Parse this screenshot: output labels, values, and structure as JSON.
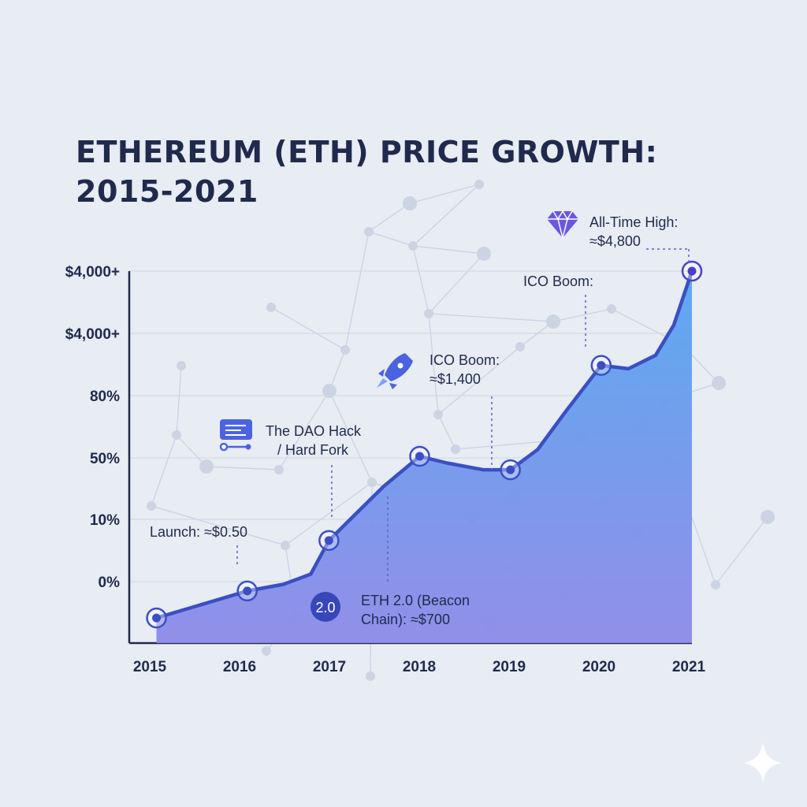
{
  "title_line1": "ETHEREUM (ETH) PRICE GROWTH:",
  "title_line2": "2015-2021",
  "colors": {
    "line": "#3b4fc4",
    "area_top": "#55a6f0",
    "area_bottom": "#8e8ae8",
    "text": "#1f2a4d",
    "grid": "#cfd6e4",
    "icon": "#4b63e0",
    "ath": "#4a3fc9"
  },
  "chart_data": {
    "type": "area",
    "x_ticks": [
      "2015",
      "2016",
      "2017",
      "2018",
      "2019",
      "2020",
      "2021"
    ],
    "y_ticks": [
      "$4,000+",
      "$4,000+",
      "80%",
      "50%",
      "10%",
      "0%"
    ],
    "x": [
      2015.1,
      2016.1,
      2016.5,
      2016.8,
      2017.0,
      2017.3,
      2017.6,
      2018.0,
      2018.3,
      2018.7,
      2019.0,
      2019.3,
      2019.6,
      2020.0,
      2020.3,
      2020.6,
      2020.8,
      2021.0
    ],
    "y": [
      -0.35,
      0.05,
      0.15,
      0.3,
      0.8,
      1.2,
      1.6,
      2.05,
      1.95,
      1.85,
      1.85,
      2.15,
      2.7,
      3.4,
      3.35,
      3.55,
      4.0,
      4.8
    ],
    "markers": [
      {
        "x": 2015.1,
        "y": -0.35
      },
      {
        "x": 2016.1,
        "y": 0.05
      },
      {
        "x": 2017.0,
        "y": 0.8
      },
      {
        "x": 2018.0,
        "y": 2.05
      },
      {
        "x": 2019.0,
        "y": 1.85
      },
      {
        "x": 2020.0,
        "y": 3.4
      },
      {
        "x": 2021.0,
        "y": 4.8
      }
    ],
    "annotations": [
      {
        "id": "launch",
        "lines": [
          "Launch: ≈$0.50"
        ],
        "icon": "none"
      },
      {
        "id": "dao",
        "lines": [
          "The DAO Hack",
          "/ Hard Fork"
        ],
        "icon": "server-icon"
      },
      {
        "id": "ico2018",
        "lines": [
          "ICO Boom:",
          "≈$1,400"
        ],
        "icon": "rocket-icon"
      },
      {
        "id": "eth2",
        "lines": [
          "ETH 2.0 (Beacon",
          "Chain): ≈$700"
        ],
        "icon": "eth2-badge-icon",
        "badge": "2.0"
      },
      {
        "id": "ico2020",
        "lines": [
          "ICO Boom:"
        ],
        "icon": "none"
      },
      {
        "id": "ath",
        "lines": [
          "All-Time High:",
          "≈$4,800"
        ],
        "icon": "diamond-icon"
      }
    ],
    "grid": true
  }
}
